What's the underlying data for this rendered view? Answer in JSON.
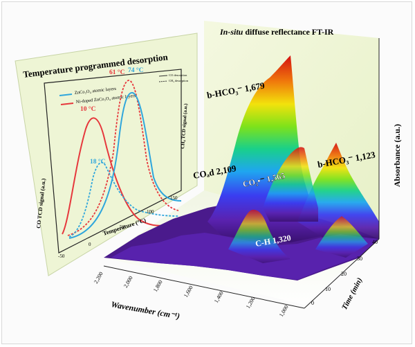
{
  "main_title": {
    "prefix": "In-situ",
    "rest": " diffuse reflectance FT-IR"
  },
  "tpd": {
    "title": "Temperature programmed desorption",
    "legend": {
      "series_a": "ZnCo₂O₄ atomic layers",
      "series_b": "Ni-doped ZnCo₂O₄ atomic layers",
      "style_solid": "CO desorption",
      "style_dotted": "CH₄ desorption"
    },
    "ylabel_left": "CO TCD signal (a.u.)",
    "ylabel_right": "CH₄ TCD signal (a.u.)",
    "xlabel": "Temperature (°C)",
    "xticks": [
      "-50",
      "0",
      "50",
      "100",
      "150"
    ],
    "peak_labels": [
      "10 °C",
      "18 °C",
      "61 °C",
      "74 °C"
    ],
    "colors": {
      "zncoo": "#2fa6dc",
      "ni_doped": "#e6373c"
    }
  },
  "ftir": {
    "annotations": [
      "b-HCO₃⁻ 1,679",
      "COₐd 2,109",
      "CO₂•⁻ 1,565",
      "b-HCO₃⁻ 1,123",
      "C-H 1,320"
    ],
    "xlabel": "Wavenumber (cm⁻¹)",
    "xticks": [
      "2,200",
      "2,000",
      "1,800",
      "1,600",
      "1,400",
      "1,200",
      "1,000"
    ],
    "zlabel": "Absorbance (a.u.)",
    "time_label": "Time (min)",
    "time_ticks": [
      "0",
      "10",
      "20",
      "30",
      "40"
    ]
  }
}
